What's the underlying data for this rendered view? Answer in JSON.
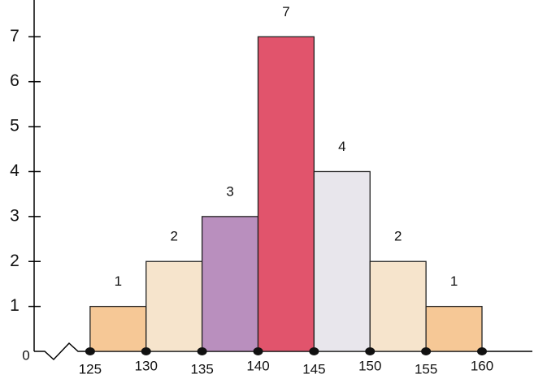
{
  "chart_data": {
    "type": "histogram",
    "bins": [
      125,
      130,
      135,
      140,
      145,
      150,
      155,
      160
    ],
    "counts": [
      1,
      2,
      3,
      7,
      4,
      2,
      1
    ],
    "colors": [
      "#f6c896",
      "#f6e4cc",
      "#b98fbe",
      "#e1546c",
      "#e8e6ec",
      "#f6e4cc",
      "#f6c896"
    ],
    "xlim": [
      120,
      164.5
    ],
    "ylim": [
      0,
      7.8
    ],
    "xticks": [
      125,
      130,
      135,
      140,
      145,
      150,
      155,
      160
    ],
    "yticks": [
      0,
      1,
      2,
      3,
      4,
      5,
      6,
      7
    ],
    "value_labels_shown": true
  }
}
